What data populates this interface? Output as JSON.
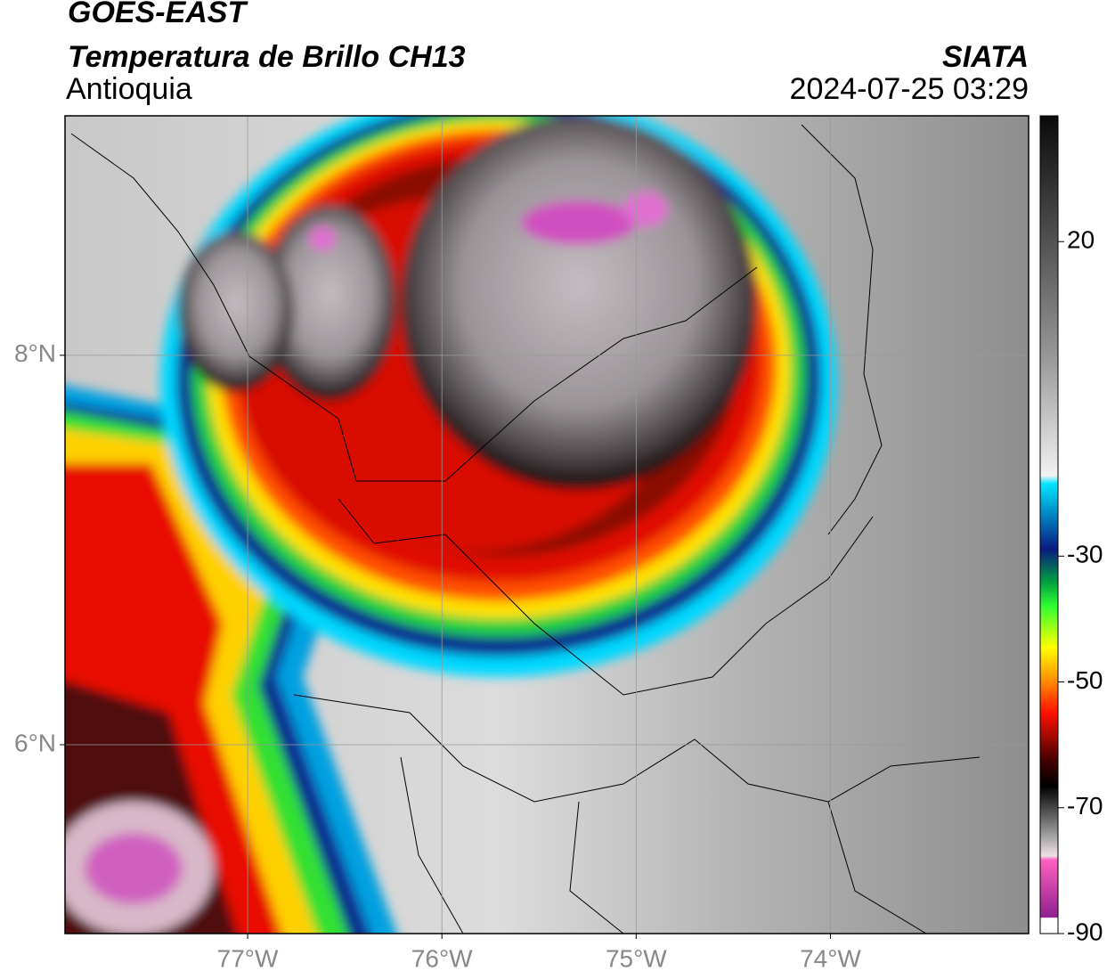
{
  "header": {
    "title": "GOES-EAST",
    "subtitle": "Temperatura de Brillo CH13",
    "region": "Antioquia",
    "source": "SIATA",
    "timestamp": "2024-07-25 03:29"
  },
  "map": {
    "lon_range": [
      -77.94,
      -72.98
    ],
    "lat_range": [
      5.03,
      9.23
    ],
    "lon_ticks": [
      {
        "value": -77,
        "label": "77°W"
      },
      {
        "value": -76,
        "label": "76°W"
      },
      {
        "value": -75,
        "label": "75°W"
      },
      {
        "value": -74,
        "label": "74°W"
      }
    ],
    "lat_ticks": [
      {
        "value": 8,
        "label": "8°N"
      },
      {
        "value": 6,
        "label": "6°N"
      }
    ]
  },
  "colorbar": {
    "range": [
      -90,
      40
    ],
    "ticks": [
      20,
      -30,
      -50,
      -70,
      -90
    ]
  }
}
